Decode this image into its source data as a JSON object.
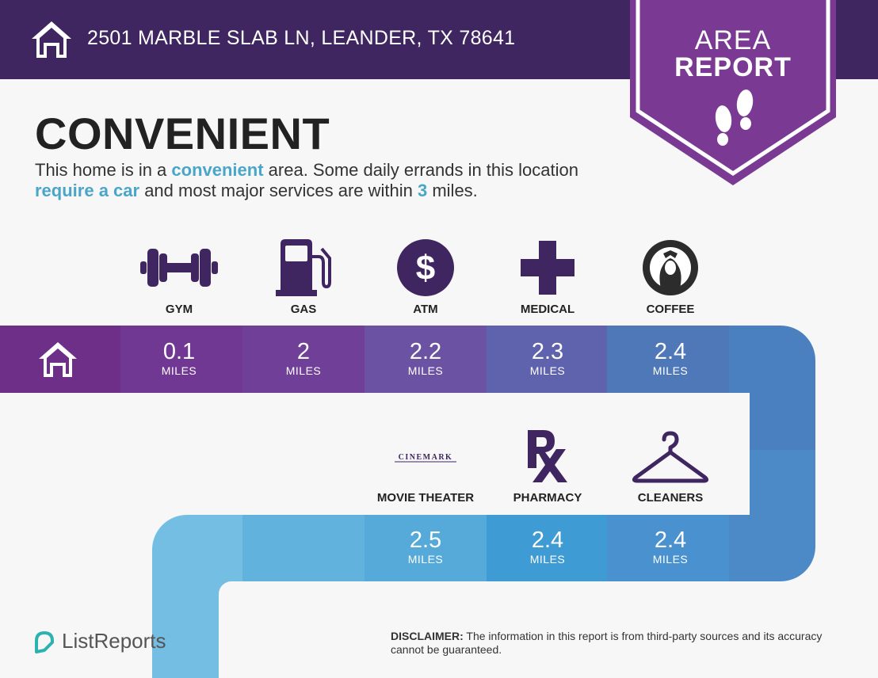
{
  "header": {
    "address": "2501 MARBLE SLAB LN, LEANDER, TX 78641"
  },
  "badge": {
    "line1": "AREA",
    "line2": "REPORT"
  },
  "main": {
    "headline": "CONVENIENT",
    "description": {
      "p1": "This home is in a ",
      "h1": "convenient",
      "p2": " area. Some daily errands in this location ",
      "h2": "require a car",
      "p3": " and most major services are within ",
      "h3": "3",
      "p4": " miles."
    }
  },
  "row1": [
    {
      "label": "GYM",
      "icon": "dumbbell-icon",
      "value": "0.1",
      "unit": "MILES"
    },
    {
      "label": "GAS",
      "icon": "gas-pump-icon",
      "value": "2",
      "unit": "MILES"
    },
    {
      "label": "ATM",
      "icon": "dollar-icon",
      "value": "2.2",
      "unit": "MILES"
    },
    {
      "label": "MEDICAL",
      "icon": "medical-cross-icon",
      "value": "2.3",
      "unit": "MILES"
    },
    {
      "label": "COFFEE",
      "icon": "starbucks-logo-icon",
      "value": "2.4",
      "unit": "MILES"
    }
  ],
  "row2": [
    {
      "label": "MOVIE THEATER",
      "icon": "cinemark-logo-icon",
      "logo_text": "CINEMARK",
      "value": "2.5",
      "unit": "MILES"
    },
    {
      "label": "PHARMACY",
      "icon": "rx-icon",
      "value": "2.4",
      "unit": "MILES"
    },
    {
      "label": "CLEANERS",
      "icon": "hanger-icon",
      "value": "2.4",
      "unit": "MILES"
    }
  ],
  "footer": {
    "brand": "ListReports",
    "disclaimer_label": "DISCLAIMER:",
    "disclaimer_text": " The information in this report is from third-party sources and its accuracy cannot be guaranteed."
  },
  "colors": {
    "header_bg": "#3f2660",
    "badge": "#7a3a93",
    "accent": "#4aa6c8",
    "icon": "#3f2660"
  }
}
